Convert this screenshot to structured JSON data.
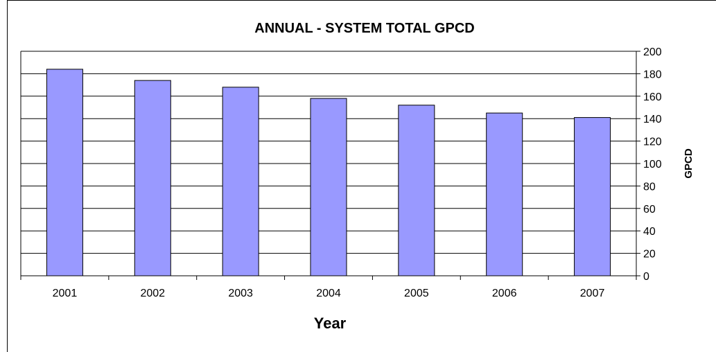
{
  "chart_data": {
    "type": "bar",
    "title": "ANNUAL - SYSTEM TOTAL GPCD",
    "xlabel": "Year",
    "ylabel": "GPCD",
    "categories": [
      "2001",
      "2002",
      "2003",
      "2004",
      "2005",
      "2006",
      "2007"
    ],
    "values": [
      184,
      174,
      168,
      158,
      152,
      145,
      141
    ],
    "ylim": [
      0,
      200
    ],
    "yticks": [
      0,
      20,
      40,
      60,
      80,
      100,
      120,
      140,
      160,
      180,
      200
    ],
    "y_axis_side": "right",
    "grid": true,
    "legend": false,
    "bar_color": "#9999ff"
  }
}
